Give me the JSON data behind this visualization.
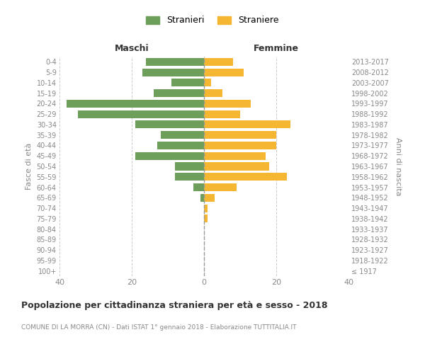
{
  "age_groups": [
    "100+",
    "95-99",
    "90-94",
    "85-89",
    "80-84",
    "75-79",
    "70-74",
    "65-69",
    "60-64",
    "55-59",
    "50-54",
    "45-49",
    "40-44",
    "35-39",
    "30-34",
    "25-29",
    "20-24",
    "15-19",
    "10-14",
    "5-9",
    "0-4"
  ],
  "birth_years": [
    "≤ 1917",
    "1918-1922",
    "1923-1927",
    "1928-1932",
    "1933-1937",
    "1938-1942",
    "1943-1947",
    "1948-1952",
    "1953-1957",
    "1958-1962",
    "1963-1967",
    "1968-1972",
    "1973-1977",
    "1978-1982",
    "1983-1987",
    "1988-1992",
    "1993-1997",
    "1998-2002",
    "2003-2007",
    "2008-2012",
    "2013-2017"
  ],
  "maschi": [
    0,
    0,
    0,
    0,
    0,
    0,
    0,
    1,
    3,
    8,
    8,
    19,
    13,
    12,
    19,
    35,
    38,
    14,
    9,
    17,
    16
  ],
  "femmine": [
    0,
    0,
    0,
    0,
    0,
    1,
    1,
    3,
    9,
    23,
    18,
    17,
    20,
    20,
    24,
    10,
    13,
    5,
    2,
    11,
    8
  ],
  "color_maschi": "#6d9e5a",
  "color_femmine": "#f5b731",
  "title": "Popolazione per cittadinanza straniera per età e sesso - 2018",
  "subtitle": "COMUNE DI LA MORRA (CN) - Dati ISTAT 1° gennaio 2018 - Elaborazione TUTTITALIA.IT",
  "ylabel_left": "Fasce di età",
  "ylabel_right": "Anni di nascita",
  "xlabel_left": "Maschi",
  "xlabel_right": "Femmine",
  "legend_maschi": "Stranieri",
  "legend_femmine": "Straniere",
  "xlim": 40,
  "background_color": "#ffffff",
  "grid_color": "#cccccc",
  "label_color": "#888888",
  "title_color": "#333333"
}
